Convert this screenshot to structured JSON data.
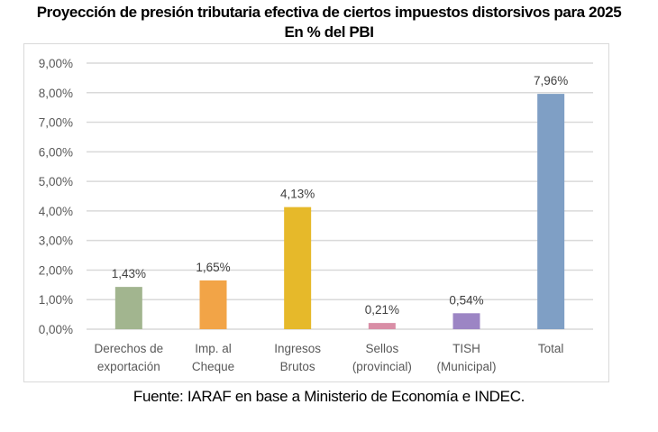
{
  "header": {
    "title": "Proyección de presión tributaria efectiva de ciertos impuestos distorsivos para 2025",
    "subtitle": "En % del PBI"
  },
  "footer": {
    "source": "Fuente: IARAF en base a Ministerio de Economía e INDEC."
  },
  "chart_data": {
    "type": "bar",
    "title": "Proyección de presión tributaria efectiva de ciertos impuestos distorsivos para 2025",
    "subtitle": "En % del PBI",
    "xlabel": "",
    "ylabel": "",
    "ylim": [
      0,
      9
    ],
    "yticks": [
      0,
      1,
      2,
      3,
      4,
      5,
      6,
      7,
      8,
      9
    ],
    "ytick_labels": [
      "0,00%",
      "1,00%",
      "2,00%",
      "3,00%",
      "4,00%",
      "5,00%",
      "6,00%",
      "7,00%",
      "8,00%",
      "9,00%"
    ],
    "grid": true,
    "legend": "none",
    "categories": [
      [
        "Derechos de",
        "exportación"
      ],
      [
        "Imp. al",
        "Cheque"
      ],
      [
        "Ingresos",
        "Brutos"
      ],
      [
        "Sellos",
        "(provincial)"
      ],
      [
        "TISH",
        "(Municipal)"
      ],
      [
        "Total"
      ]
    ],
    "values": [
      1.43,
      1.65,
      4.13,
      0.21,
      0.54,
      7.96
    ],
    "data_labels": [
      "1,43%",
      "1,65%",
      "4,13%",
      "0,21%",
      "0,54%",
      "7,96%"
    ],
    "colors": [
      "#a2b58f",
      "#f2a447",
      "#e6b92a",
      "#d98ea6",
      "#9c85c4",
      "#7f9fc5"
    ]
  }
}
